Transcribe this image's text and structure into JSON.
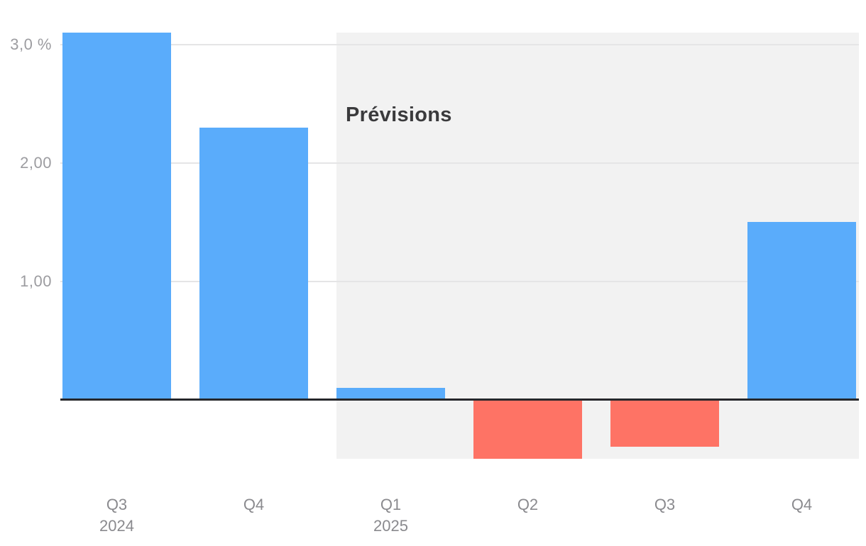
{
  "chart_data": {
    "type": "bar",
    "title": "",
    "annotation": "Prévisions",
    "categories": [
      "Q3",
      "Q4",
      "Q1",
      "Q2",
      "Q3",
      "Q4"
    ],
    "category_years": [
      "2024",
      "",
      "2025",
      "",
      "",
      ""
    ],
    "series_years_full": [
      "2024",
      "2024",
      "2025",
      "2025",
      "2025",
      "2025"
    ],
    "values": [
      3.1,
      2.3,
      0.1,
      -0.5,
      -0.4,
      1.5
    ],
    "unit": "%",
    "forecast_from_index": 2,
    "ytick_labels": [
      "3,0 %",
      "2,00",
      "1,00"
    ],
    "ytick_values": [
      3.0,
      2.0,
      1.0
    ],
    "ylim": [
      -0.5,
      3.1
    ],
    "grid": true,
    "legend": "none",
    "colors": {
      "positive_bar": "#5aacfb",
      "negative_bar": "#fe7365",
      "forecast_region": "#f2f2f2",
      "gridline": "#e5e5e6",
      "zero_line": "#26272b",
      "y_label_text": "#9c9ca0",
      "x_label_text": "#8a8a8e",
      "annotation_text": "#3a3a3c",
      "background": "#ffffff"
    }
  }
}
